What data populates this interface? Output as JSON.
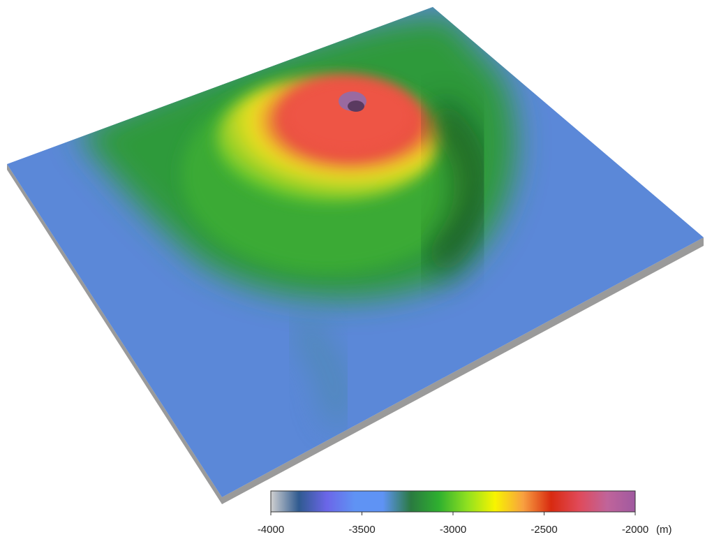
{
  "colorbar": {
    "range": [
      -4000,
      -2000
    ],
    "ticks": [
      -4000,
      -3500,
      -3000,
      -2500,
      -2000
    ],
    "unit": "(m)",
    "colormap": [
      "#d0d0d0",
      "#2f5a90",
      "#6b66e8",
      "#5f93f4",
      "#5f93f4",
      "#2a7a40",
      "#2fb02f",
      "#8fe020",
      "#f8f400",
      "#f8a040",
      "#d82a10",
      "#e04a5a",
      "#c0649a",
      "#a05aa0"
    ]
  }
}
